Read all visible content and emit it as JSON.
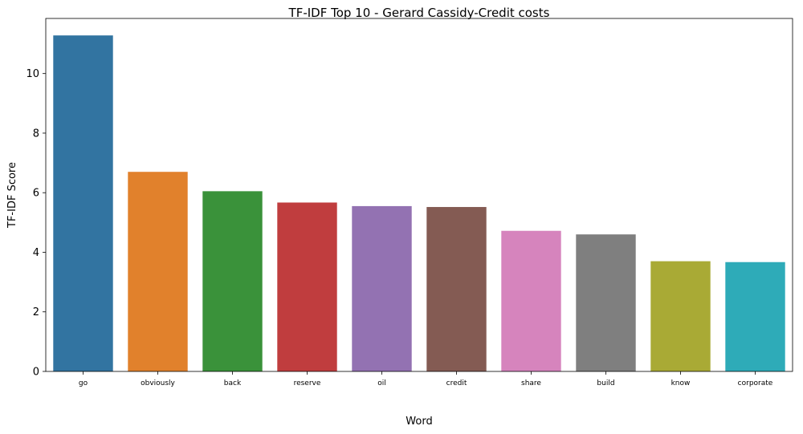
{
  "chart_data": {
    "type": "bar",
    "title": "TF-IDF Top 10 - Gerard Cassidy-Credit costs",
    "xlabel": "Word",
    "ylabel": "TF-IDF Score",
    "categories": [
      "go",
      "obviously",
      "back",
      "reserve",
      "oil",
      "credit",
      "share",
      "build",
      "know",
      "corporate"
    ],
    "values": [
      11.28,
      6.7,
      6.05,
      5.67,
      5.55,
      5.52,
      4.72,
      4.6,
      3.7,
      3.67
    ],
    "colors": [
      "#3274a1",
      "#e1812c",
      "#3a923a",
      "#c03d3e",
      "#9372b2",
      "#845b53",
      "#d684bd",
      "#7f7f7f",
      "#a9aa35",
      "#2eabb8"
    ],
    "ylim": [
      0,
      11.85
    ],
    "yticks": [
      0,
      2,
      4,
      6,
      8,
      10
    ],
    "grid": false,
    "legend": "none"
  }
}
